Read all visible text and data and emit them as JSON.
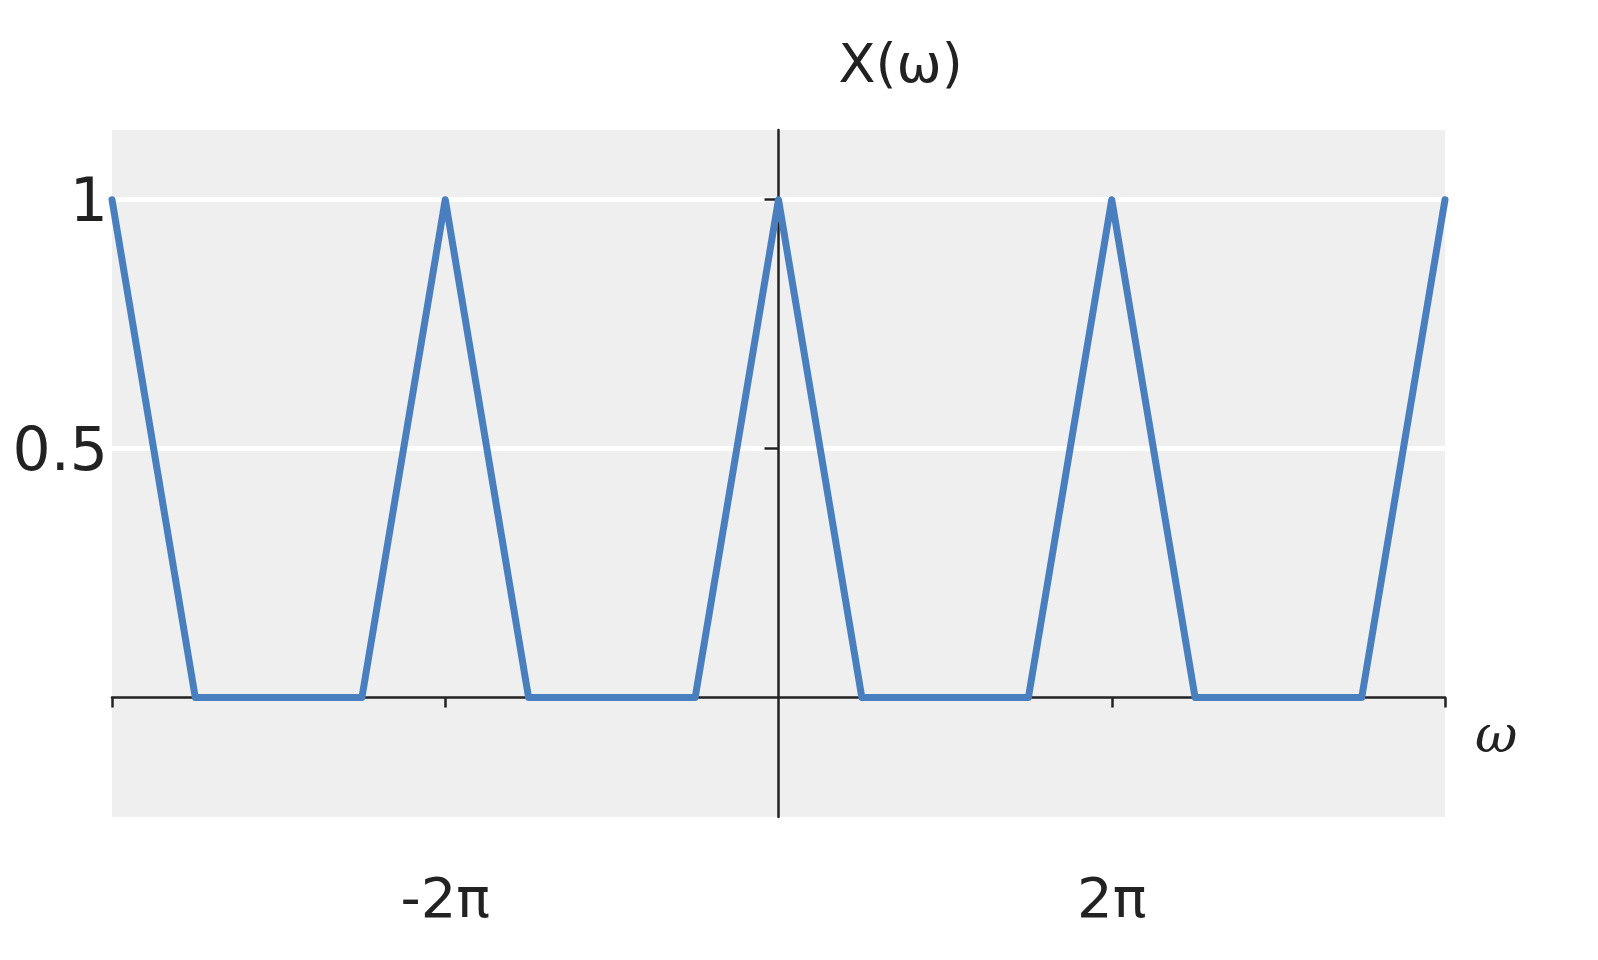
{
  "chart_data": {
    "type": "line",
    "xlabel": "ω",
    "ylabel": "X(ω)",
    "x": [
      -12.566,
      -10.996,
      -7.854,
      -6.283,
      -4.712,
      -1.571,
      0,
      1.571,
      4.712,
      6.283,
      7.854,
      10.996,
      12.566
    ],
    "series": [
      {
        "color": "#4a7fbf",
        "values": [
          1,
          0,
          0,
          1,
          0,
          0,
          1,
          0,
          0,
          1,
          0,
          0,
          1
        ]
      }
    ],
    "xlim": [
      -12.566,
      12.566
    ],
    "xticks": [
      {
        "value": -12.566,
        "label": null
      },
      {
        "value": -6.283,
        "label": "-2π"
      },
      {
        "value": 6.283,
        "label": "2π"
      },
      {
        "value": 12.566,
        "label": null
      }
    ],
    "ylim": [
      -0.24,
      1.14
    ],
    "yticks": [
      0.5,
      1
    ],
    "grid": "y",
    "marker": "none",
    "line_style": "solid"
  }
}
